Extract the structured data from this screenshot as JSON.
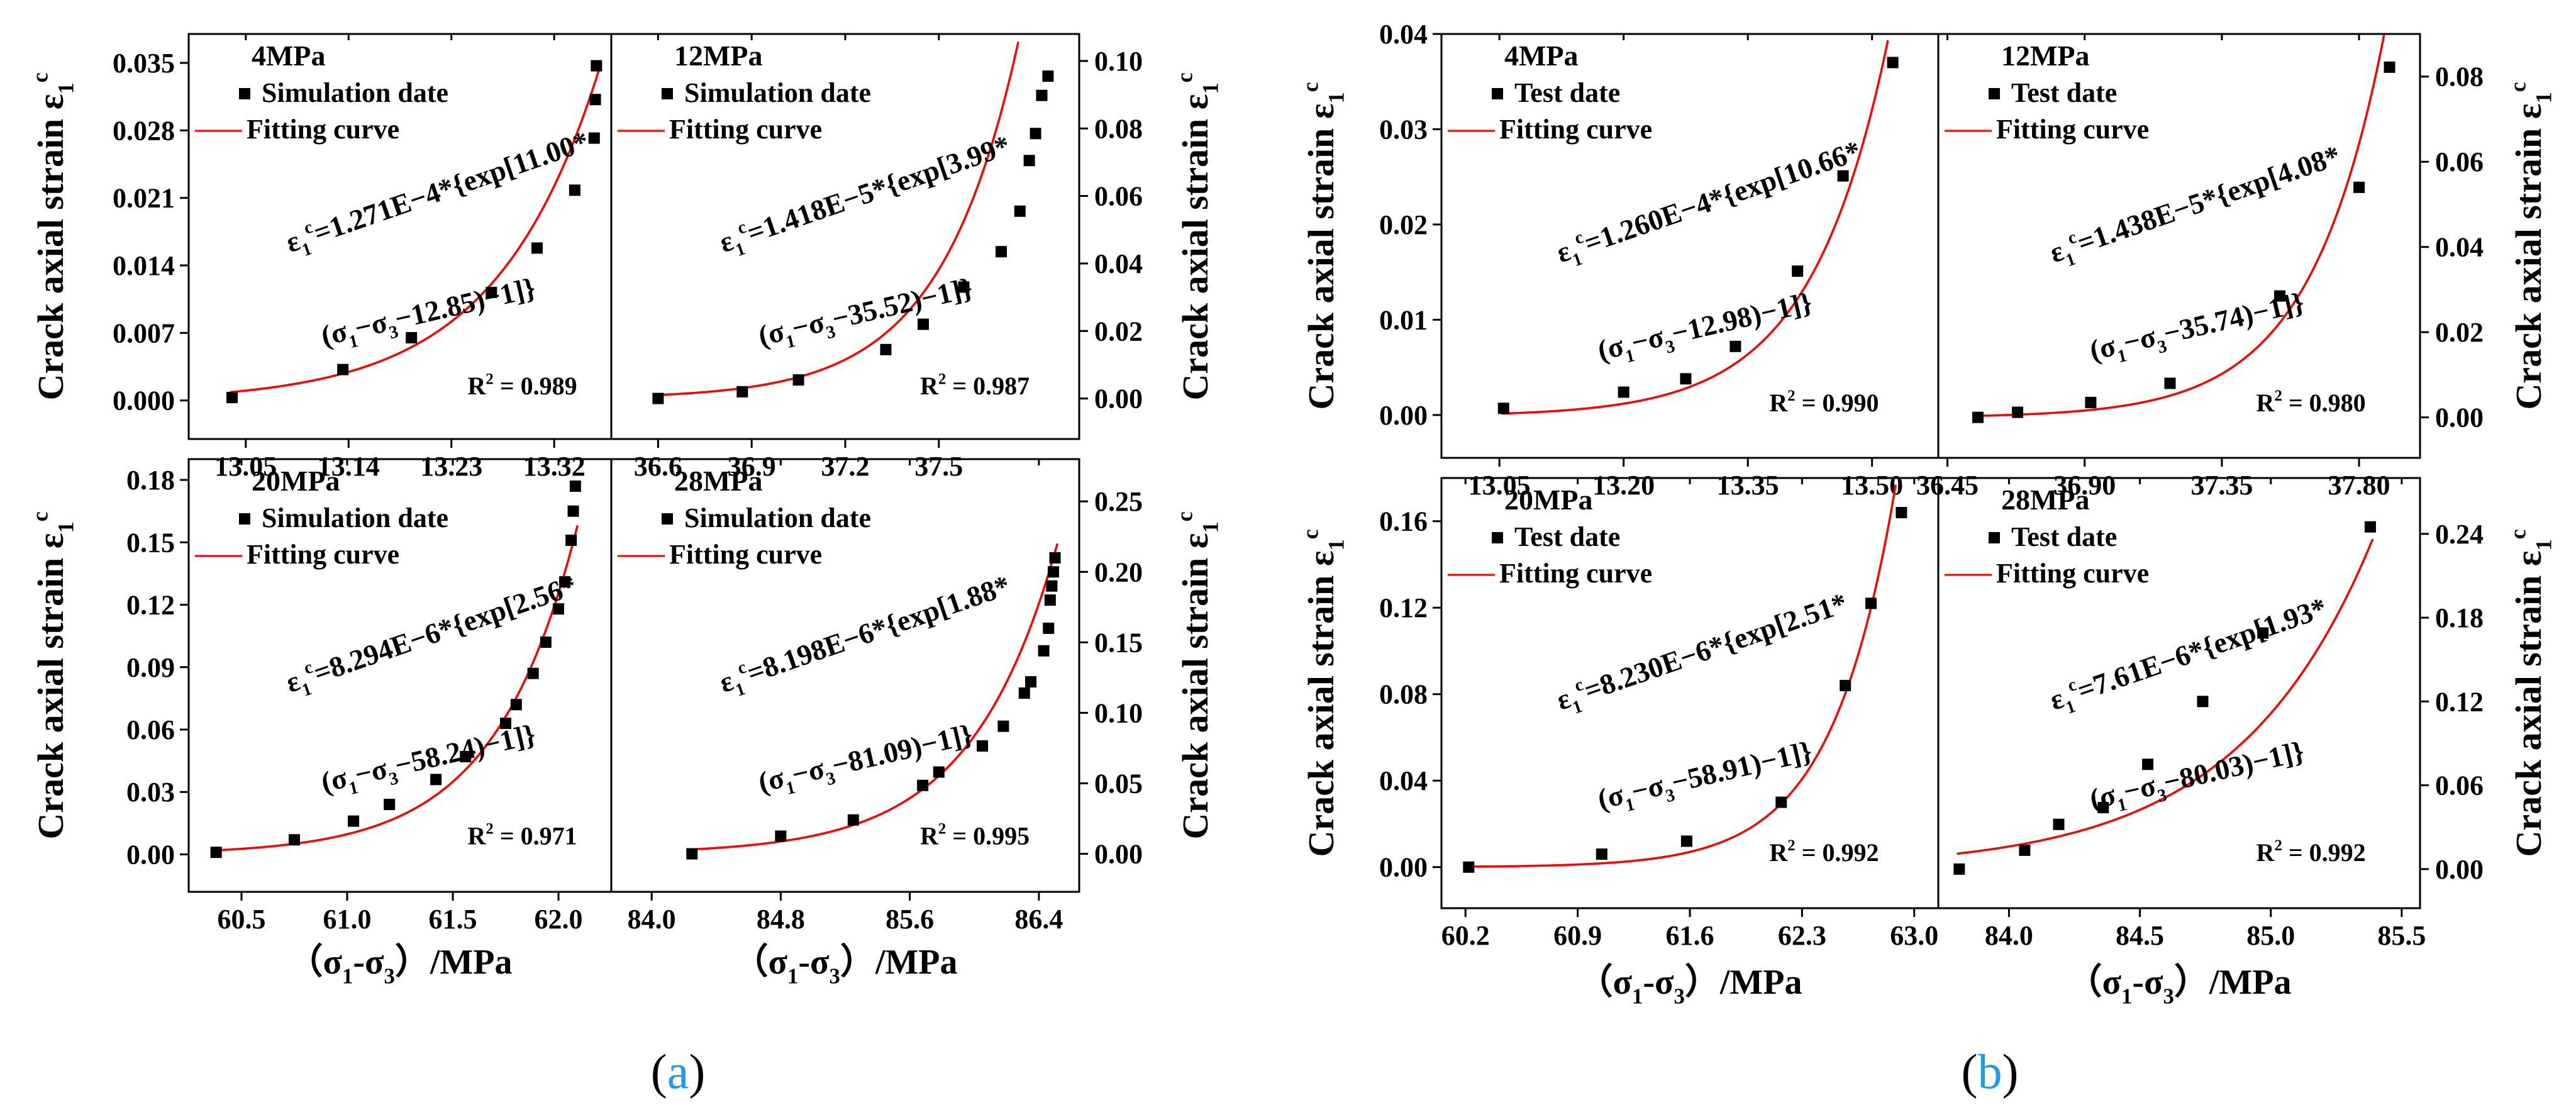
{
  "style": {
    "curve_color": "#ff0000",
    "marker_color": "#000000",
    "axis_color": "#000000",
    "subfig_label_color": "#1e9be6"
  },
  "figure": {
    "a": {
      "label_open": "(",
      "label_letter": "a",
      "label_close": ")"
    },
    "b": {
      "label_open": "(",
      "label_letter": "b",
      "label_close": ")"
    }
  },
  "axis_text": {
    "ylabel_left": "Crack axial strain ε",
    "ylabel_right": "Crack axial strain ε",
    "y_super": "c",
    "y_sub": "1",
    "xlabel": "（σ1-σ3）/MPa"
  },
  "chart_data": [
    {
      "id": "a-4MPa",
      "type": "scatter",
      "title": "4MPa",
      "legend": {
        "marker": "Simulation date",
        "line": "Fitting curve"
      },
      "equation": {
        "line1": "ε1c=1.271E−4*{exp[11.00*",
        "line2": "(σ1−σ3−12.85)−1]}"
      },
      "r2": "R2 = 0.989",
      "fit": {
        "A": 0.0001271,
        "k": 11.0,
        "c": 12.85
      },
      "xlim": [
        13.0,
        13.37
      ],
      "ylim": [
        -0.004,
        0.038
      ],
      "xticks": [
        "13.05",
        "13.14",
        "13.23",
        "13.32"
      ],
      "xtick_values": [
        13.05,
        13.14,
        13.23,
        13.32
      ],
      "yticks": [
        "0.000",
        "0.007",
        "0.014",
        "0.021",
        "0.028",
        "0.035"
      ],
      "ytick_values": [
        0.0,
        0.007,
        0.014,
        0.021,
        0.028,
        0.035
      ],
      "points": [
        [
          13.038,
          0.0003
        ],
        [
          13.135,
          0.0032
        ],
        [
          13.195,
          0.0065
        ],
        [
          13.265,
          0.0112
        ],
        [
          13.305,
          0.0158
        ],
        [
          13.338,
          0.0218
        ],
        [
          13.355,
          0.0272
        ],
        [
          13.356,
          0.0312
        ],
        [
          13.357,
          0.0347
        ]
      ]
    },
    {
      "id": "a-12MPa",
      "type": "scatter",
      "title": "12MPa",
      "legend": {
        "marker": "Simulation date",
        "line": "Fitting curve"
      },
      "equation": {
        "line1": "ε1c=1.418E−5*{exp[3.99*",
        "line2": "(σ1−σ3−35.52)−1]}"
      },
      "r2": "R2 = 0.987",
      "fit": {
        "A": 1.418e-05,
        "k": 3.99,
        "c": 35.52
      },
      "xlim": [
        36.45,
        37.95
      ],
      "ylim": [
        -0.012,
        0.108
      ],
      "xticks": [
        "36.6",
        "36.9",
        "37.2",
        "37.5"
      ],
      "xtick_values": [
        36.6,
        36.9,
        37.2,
        37.5
      ],
      "yticks": [
        "0.00",
        "0.02",
        "0.04",
        "0.06",
        "0.08",
        "0.10"
      ],
      "ytick_values": [
        0.0,
        0.02,
        0.04,
        0.06,
        0.08,
        0.1
      ],
      "points": [
        [
          36.6,
          0.0
        ],
        [
          36.87,
          0.002
        ],
        [
          37.05,
          0.0055
        ],
        [
          37.33,
          0.0145
        ],
        [
          37.45,
          0.022
        ],
        [
          37.58,
          0.033
        ],
        [
          37.7,
          0.0435
        ],
        [
          37.76,
          0.0555
        ],
        [
          37.79,
          0.0705
        ],
        [
          37.81,
          0.0785
        ],
        [
          37.83,
          0.0898
        ],
        [
          37.85,
          0.0955
        ]
      ]
    },
    {
      "id": "a-20MPa",
      "type": "scatter",
      "title": "20MPa",
      "legend": {
        "marker": "Simulation date",
        "line": "Fitting curve"
      },
      "equation": {
        "line1": "ε1c=8.294E−6*{exp[2.56*",
        "line2": "(σ1−σ3−58.24)−1]}"
      },
      "r2": "R2 = 0.971",
      "fit": {
        "A": 8.294e-06,
        "k": 2.56,
        "c": 58.24
      },
      "xlim": [
        60.25,
        62.25
      ],
      "ylim": [
        -0.018,
        0.19
      ],
      "xticks": [
        "60.5",
        "61.0",
        "61.5",
        "62.0"
      ],
      "xtick_values": [
        60.5,
        61.0,
        61.5,
        62.0
      ],
      "yticks": [
        "0.00",
        "0.03",
        "0.06",
        "0.09",
        "0.12",
        "0.15",
        "0.18"
      ],
      "ytick_values": [
        0.0,
        0.03,
        0.06,
        0.09,
        0.12,
        0.15,
        0.18
      ],
      "points": [
        [
          60.38,
          0.001
        ],
        [
          60.75,
          0.007
        ],
        [
          61.03,
          0.016
        ],
        [
          61.2,
          0.024
        ],
        [
          61.42,
          0.036
        ],
        [
          61.56,
          0.047
        ],
        [
          61.75,
          0.063
        ],
        [
          61.8,
          0.072
        ],
        [
          61.88,
          0.087
        ],
        [
          61.94,
          0.102
        ],
        [
          62.0,
          0.118
        ],
        [
          62.03,
          0.131
        ],
        [
          62.06,
          0.151
        ],
        [
          62.07,
          0.165
        ],
        [
          62.08,
          0.177
        ]
      ]
    },
    {
      "id": "a-28MPa",
      "type": "scatter",
      "title": "28MPa",
      "legend": {
        "marker": "Simulation date",
        "line": "Fitting curve"
      },
      "equation": {
        "line1": "ε1c=8.198E−6*{exp[1.88*",
        "line2": "(σ1−σ3−81.09)−1]}"
      },
      "r2": "R2 = 0.995",
      "fit": {
        "A": 8.198e-06,
        "k": 1.88,
        "c": 81.09
      },
      "xlim": [
        83.75,
        86.65
      ],
      "ylim": [
        -0.027,
        0.28
      ],
      "xticks": [
        "84.0",
        "84.8",
        "85.6",
        "86.4"
      ],
      "xtick_values": [
        84.0,
        84.8,
        85.6,
        86.4
      ],
      "yticks": [
        "0.00",
        "0.05",
        "0.10",
        "0.15",
        "0.20",
        "0.25"
      ],
      "ytick_values": [
        0.0,
        0.05,
        0.1,
        0.15,
        0.2,
        0.25
      ],
      "points": [
        [
          84.25,
          0.0
        ],
        [
          84.8,
          0.0125
        ],
        [
          85.25,
          0.024
        ],
        [
          85.68,
          0.0485
        ],
        [
          85.78,
          0.058
        ],
        [
          86.05,
          0.0765
        ],
        [
          86.18,
          0.0905
        ],
        [
          86.31,
          0.114
        ],
        [
          86.35,
          0.122
        ],
        [
          86.43,
          0.144
        ],
        [
          86.46,
          0.16
        ],
        [
          86.47,
          0.18
        ],
        [
          86.48,
          0.19
        ],
        [
          86.49,
          0.2
        ],
        [
          86.5,
          0.21
        ]
      ]
    },
    {
      "id": "b-4MPa",
      "type": "scatter",
      "title": "4MPa",
      "legend": {
        "marker": "Test date",
        "line": "Fitting curve"
      },
      "equation": {
        "line1": "ε1c=1.260E−4*{exp[10.66*",
        "line2": "(σ1−σ3−12.98)−1]}"
      },
      "r2": "R2 = 0.990",
      "fit": {
        "A": 0.000126,
        "k": 10.66,
        "c": 12.98
      },
      "xlim": [
        12.98,
        13.58
      ],
      "ylim": [
        -0.0045,
        0.04
      ],
      "xticks": [
        "13.05",
        "13.20",
        "13.35",
        "13.50"
      ],
      "xtick_values": [
        13.05,
        13.2,
        13.35,
        13.5
      ],
      "yticks": [
        "0.00",
        "0.01",
        "0.02",
        "0.03",
        "0.04"
      ],
      "ytick_values": [
        0.0,
        0.01,
        0.02,
        0.03,
        0.04
      ],
      "points": [
        [
          13.055,
          0.0007
        ],
        [
          13.2,
          0.0024
        ],
        [
          13.275,
          0.0038
        ],
        [
          13.335,
          0.0072
        ],
        [
          13.41,
          0.0151
        ],
        [
          13.465,
          0.0251
        ],
        [
          13.525,
          0.037
        ]
      ]
    },
    {
      "id": "b-12MPa",
      "type": "scatter",
      "title": "12MPa",
      "legend": {
        "marker": "Test date",
        "line": "Fitting curve"
      },
      "equation": {
        "line1": "ε1c=1.438E−5*{exp[4.08*",
        "line2": "(σ1−σ3−35.74)−1]}"
      },
      "r2": "R2 = 0.980",
      "fit": {
        "A": 1.438e-05,
        "k": 4.08,
        "c": 35.74
      },
      "xlim": [
        36.42,
        38.0
      ],
      "ylim": [
        -0.0095,
        0.09
      ],
      "xticks": [
        "36.45",
        "36.90",
        "37.35",
        "37.80"
      ],
      "xtick_values": [
        36.45,
        36.9,
        37.35,
        37.8
      ],
      "yticks": [
        "0.00",
        "0.02",
        "0.04",
        "0.06",
        "0.08"
      ],
      "ytick_values": [
        0.0,
        0.02,
        0.04,
        0.06,
        0.08
      ],
      "points": [
        [
          36.55,
          0.0
        ],
        [
          36.68,
          0.0012
        ],
        [
          36.92,
          0.0035
        ],
        [
          37.18,
          0.008
        ],
        [
          37.54,
          0.0285
        ],
        [
          37.8,
          0.054
        ],
        [
          37.9,
          0.0822
        ]
      ]
    },
    {
      "id": "b-20MPa",
      "type": "scatter",
      "title": "20MPa",
      "legend": {
        "marker": "Test date",
        "line": "Fitting curve"
      },
      "equation": {
        "line1": "ε1c=8.230E−6*{exp[2.51*",
        "line2": "(σ1−σ3−58.91)−1]}"
      },
      "r2": "R2 = 0.992",
      "fit": {
        "A": 8.23e-06,
        "k": 2.51,
        "c": 58.91
      },
      "xlim": [
        60.05,
        63.15
      ],
      "ylim": [
        -0.019,
        0.18
      ],
      "xticks": [
        "60.2",
        "60.9",
        "61.6",
        "62.3",
        "63.0"
      ],
      "xtick_values": [
        60.2,
        60.9,
        61.6,
        62.3,
        63.0
      ],
      "yticks": [
        "0.00",
        "0.04",
        "0.08",
        "0.12",
        "0.16"
      ],
      "ytick_values": [
        0.0,
        0.04,
        0.08,
        0.12,
        0.16
      ],
      "points": [
        [
          60.22,
          0.0
        ],
        [
          61.05,
          0.006
        ],
        [
          61.58,
          0.012
        ],
        [
          62.17,
          0.03
        ],
        [
          62.57,
          0.084
        ],
        [
          62.73,
          0.122
        ],
        [
          62.92,
          0.164
        ]
      ]
    },
    {
      "id": "b-28MPa",
      "type": "scatter",
      "title": "28MPa",
      "legend": {
        "marker": "Test date",
        "line": "Fitting curve"
      },
      "equation": {
        "line1": "ε1c=7.61E−6*{exp[1.93*",
        "line2": "(σ1−σ3−80.03)−1]}"
      },
      "r2": "R2 = 0.992",
      "fit": {
        "A": 7.61e-06,
        "k": 1.93,
        "c": 80.03
      },
      "xlim": [
        83.73,
        85.57
      ],
      "ylim": [
        -0.028,
        0.28
      ],
      "xticks": [
        "84.0",
        "84.5",
        "85.0",
        "85.5"
      ],
      "xtick_values": [
        84.0,
        84.5,
        85.0,
        85.5
      ],
      "yticks": [
        "0.00",
        "0.06",
        "0.12",
        "0.18",
        "0.24"
      ],
      "ytick_values": [
        0.0,
        0.06,
        0.12,
        0.18,
        0.24
      ],
      "points": [
        [
          83.81,
          0.0
        ],
        [
          84.06,
          0.0135
        ],
        [
          84.19,
          0.032
        ],
        [
          84.36,
          0.044
        ],
        [
          84.53,
          0.075
        ],
        [
          84.74,
          0.12
        ],
        [
          84.97,
          0.169
        ],
        [
          85.38,
          0.245
        ]
      ]
    }
  ]
}
